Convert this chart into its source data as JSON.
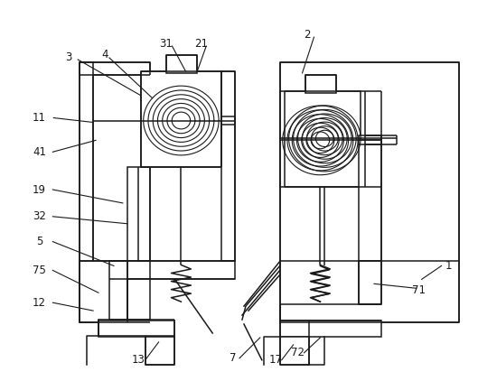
{
  "background_color": "#ffffff",
  "line_color": "#1a1a1a",
  "label_color": "#1a1a1a",
  "label_fontsize": 8.5,
  "lw": 1.1
}
